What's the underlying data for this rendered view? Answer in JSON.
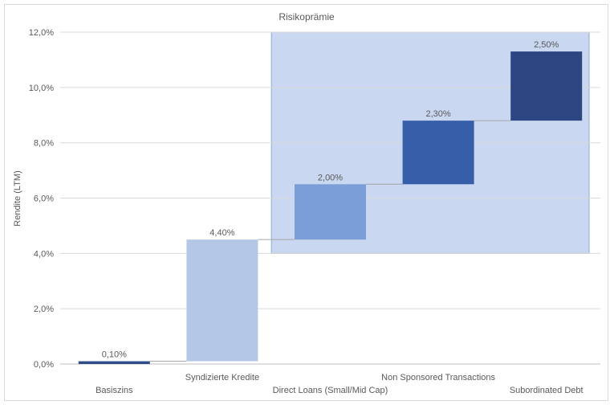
{
  "chart_data": {
    "type": "waterfall",
    "title": "Risikoprämie",
    "ylabel": "Rendite (LTM)",
    "ylim": [
      0,
      12
    ],
    "yticks": [
      0,
      2,
      4,
      6,
      8,
      10,
      12
    ],
    "ytick_labels": [
      "0,0%",
      "2,0%",
      "4,0%",
      "6,0%",
      "8,0%",
      "10,0%",
      "12,0%"
    ],
    "grid": true,
    "categories": [
      "Basiszins",
      "Syndizierte Kredite",
      "Direct Loans (Small/Mid Cap)",
      "Non Sponsored Transactions",
      "Subordinated Debt"
    ],
    "bars": [
      {
        "start": 0.0,
        "value": 0.1,
        "label": "0,10%",
        "color": "#2E4D8A"
      },
      {
        "start": 0.1,
        "value": 4.4,
        "label": "4,40%",
        "color": "#B4C7E7"
      },
      {
        "start": 4.5,
        "value": 2.0,
        "label": "2,00%",
        "color": "#7B9ED9"
      },
      {
        "start": 6.5,
        "value": 2.3,
        "label": "2,30%",
        "color": "#365EA9"
      },
      {
        "start": 8.8,
        "value": 2.5,
        "label": "2,50%",
        "color": "#2B4680"
      }
    ],
    "highlight_region": {
      "from_category": 2,
      "to_category": 4,
      "y_from": 4.0,
      "y_to": 12.0,
      "color": "#C9D7F0"
    }
  }
}
